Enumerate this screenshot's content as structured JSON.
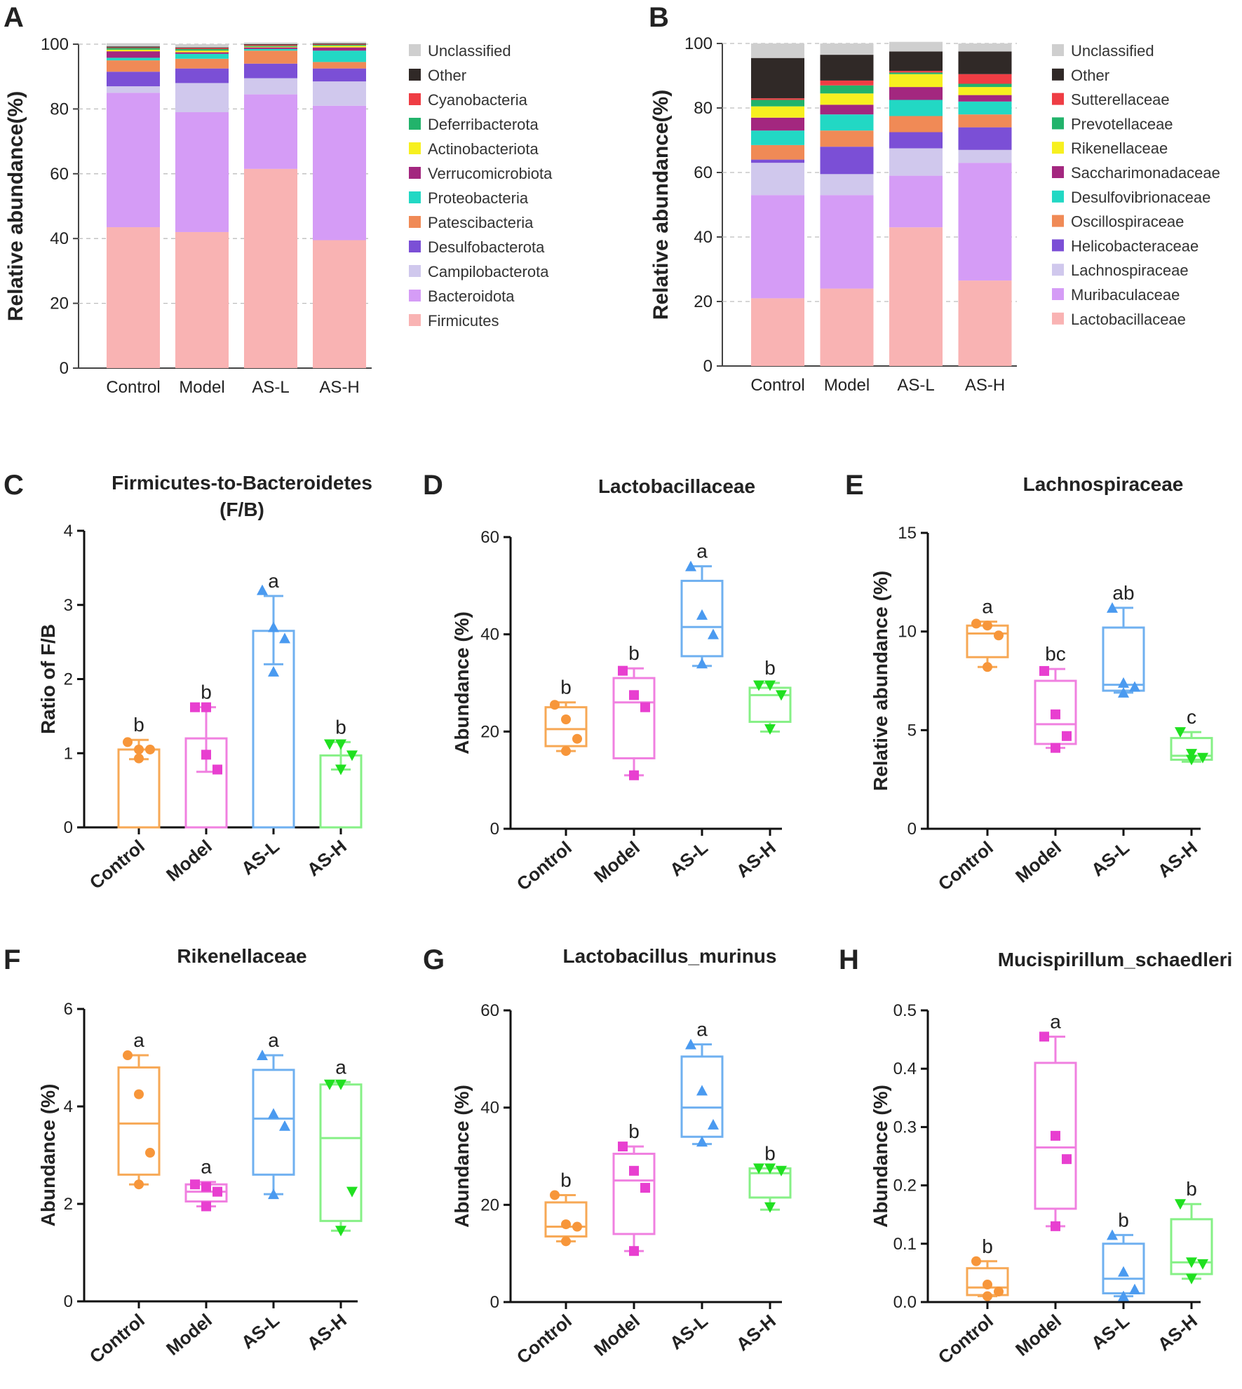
{
  "chart_data": [
    {
      "panel": "A",
      "type": "stacked-bar",
      "ylabel": "Relative abundance(%)",
      "ylim": [
        0,
        100
      ],
      "yticks": [
        "0",
        "20",
        "40",
        "60",
        "80",
        "100"
      ],
      "categories": [
        "Control",
        "Model",
        "AS-L",
        "AS-H"
      ],
      "series": [
        {
          "name": "Firmicutes",
          "color": "#f9b3b3",
          "values": [
            43.5,
            42,
            61.5,
            39.5
          ]
        },
        {
          "name": "Bacteroidota",
          "color": "#d59cf6",
          "values": [
            41.5,
            37,
            23,
            41.5
          ]
        },
        {
          "name": "Campilobacterota",
          "color": "#d0c8ed",
          "values": [
            2,
            9,
            5,
            7.5
          ]
        },
        {
          "name": "Desulfobacterota",
          "color": "#7b4fd6",
          "values": [
            4.5,
            4.5,
            4.5,
            4
          ]
        },
        {
          "name": "Patescibacteria",
          "color": "#f08a56",
          "values": [
            3.5,
            3,
            4,
            2
          ]
        },
        {
          "name": "Proteobacteria",
          "color": "#22d8c4",
          "values": [
            0.8,
            1.5,
            0.5,
            3.5
          ]
        },
        {
          "name": "Verrucomicrobiota",
          "color": "#a3277f",
          "values": [
            2,
            0.5,
            0.5,
            1
          ]
        },
        {
          "name": "Actinobacteriota",
          "color": "#f7f01f",
          "values": [
            0.5,
            0.5,
            0.2,
            0.5
          ]
        },
        {
          "name": "Deferribacterota",
          "color": "#22b36b",
          "values": [
            0.5,
            0.5,
            0.3,
            0.3
          ]
        },
        {
          "name": "Cyanobacteria",
          "color": "#ef3d44",
          "values": [
            0.2,
            0.3,
            0.3,
            0.2
          ]
        },
        {
          "name": "Other",
          "color": "#302927",
          "values": [
            0.3,
            0.2,
            0.2,
            0.2
          ]
        },
        {
          "name": "Unclassified",
          "color": "#cfcfcf",
          "values": [
            1,
            1,
            0.5,
            0.5
          ]
        }
      ]
    },
    {
      "panel": "B",
      "type": "stacked-bar",
      "ylabel": "Relative abundance(%)",
      "ylim": [
        0,
        100
      ],
      "yticks": [
        "0",
        "20",
        "40",
        "60",
        "80",
        "100"
      ],
      "categories": [
        "Control",
        "Model",
        "AS-L",
        "AS-H"
      ],
      "series": [
        {
          "name": "Lactobacillaceae",
          "color": "#f9b3b3",
          "values": [
            21,
            24,
            43,
            26.5
          ]
        },
        {
          "name": "Muribaculaceae",
          "color": "#d59cf6",
          "values": [
            32,
            29,
            16,
            36.5
          ]
        },
        {
          "name": "Lachnospiraceae",
          "color": "#d0c8ed",
          "values": [
            10,
            6.5,
            8.5,
            4
          ]
        },
        {
          "name": "Helicobacteraceae",
          "color": "#7b4fd6",
          "values": [
            1,
            8.5,
            5,
            7
          ]
        },
        {
          "name": "Oscillospiraceae",
          "color": "#f08a56",
          "values": [
            4.5,
            5,
            5,
            4
          ]
        },
        {
          "name": "Desulfovibrionaceae",
          "color": "#22d8c4",
          "values": [
            4.5,
            5,
            5,
            4
          ]
        },
        {
          "name": "Saccharimonadaceae",
          "color": "#a3277f",
          "values": [
            4,
            3,
            4,
            2
          ]
        },
        {
          "name": "Rikenellaceae",
          "color": "#f7f01f",
          "values": [
            3.5,
            3.5,
            4,
            2.5
          ]
        },
        {
          "name": "Prevotellaceae",
          "color": "#22b36b",
          "values": [
            2,
            2.5,
            0.5,
            1
          ]
        },
        {
          "name": "Sutterellaceae",
          "color": "#ef3d44",
          "values": [
            0.5,
            1.5,
            0.5,
            3
          ]
        },
        {
          "name": "Other",
          "color": "#302927",
          "values": [
            12.5,
            8,
            6,
            7
          ]
        },
        {
          "name": "Unclassified",
          "color": "#cfcfcf",
          "values": [
            4.5,
            3.5,
            3,
            2.5
          ]
        }
      ]
    },
    {
      "panel": "C",
      "type": "bar-with-points",
      "title": "Firmicutes-to-Bacteroidetes",
      "subtitle": "(F/B)",
      "ylabel": "Ratio of F/B",
      "ylim": [
        0,
        4
      ],
      "yticks": [
        "0",
        "1",
        "2",
        "3",
        "4"
      ],
      "categories": [
        "Control",
        "Model",
        "AS-L",
        "AS-H"
      ],
      "groups": [
        {
          "mean": 1.05,
          "err_low": 0.92,
          "err_high": 1.18,
          "points": [
            1.15,
            0.93,
            1.05,
            1.05
          ],
          "sig": "b"
        },
        {
          "mean": 1.2,
          "err_low": 0.75,
          "err_high": 1.62,
          "points": [
            1.62,
            1.62,
            0.78,
            0.98
          ],
          "sig": "b"
        },
        {
          "mean": 2.65,
          "err_low": 2.2,
          "err_high": 3.12,
          "points": [
            3.2,
            2.7,
            2.55,
            2.1
          ],
          "sig": "a"
        },
        {
          "mean": 0.97,
          "err_low": 0.78,
          "err_high": 1.15,
          "points": [
            1.12,
            1.12,
            0.97,
            0.78
          ],
          "sig": "b"
        }
      ]
    },
    {
      "panel": "D",
      "type": "box",
      "title": "Lactobacillaceae",
      "ylabel": "Abundance (%)",
      "ylim": [
        0,
        60
      ],
      "yticks": [
        "0",
        "20",
        "40",
        "60"
      ],
      "categories": [
        "Control",
        "Model",
        "AS-L",
        "AS-H"
      ],
      "groups": [
        {
          "min": 16,
          "q1": 17,
          "median": 20.5,
          "q3": 25,
          "max": 26,
          "points": [
            25.5,
            22.5,
            18.5,
            16
          ],
          "sig": "b"
        },
        {
          "min": 11,
          "q1": 14.5,
          "median": 26,
          "q3": 31,
          "max": 33,
          "points": [
            32.5,
            27.5,
            25,
            11
          ],
          "sig": "b"
        },
        {
          "min": 33.5,
          "q1": 35.5,
          "median": 41.5,
          "q3": 51,
          "max": 54,
          "points": [
            54,
            44,
            40,
            34
          ],
          "sig": "a"
        },
        {
          "min": 20,
          "q1": 22,
          "median": 27.5,
          "q3": 29,
          "max": 30,
          "points": [
            29.5,
            29.5,
            27.5,
            20.5
          ],
          "sig": "b"
        }
      ]
    },
    {
      "panel": "E",
      "type": "box",
      "title": "Lachnospiraceae",
      "ylabel": "Relative abundance (%)",
      "ylim": [
        0,
        15
      ],
      "yticks": [
        "0",
        "5",
        "10",
        "15"
      ],
      "categories": [
        "Control",
        "Model",
        "AS-L",
        "AS-H"
      ],
      "groups": [
        {
          "min": 8.2,
          "q1": 8.7,
          "median": 9.9,
          "q3": 10.3,
          "max": 10.5,
          "points": [
            10.4,
            10.3,
            9.8,
            8.2
          ],
          "sig": "a"
        },
        {
          "min": 4.1,
          "q1": 4.3,
          "median": 5.3,
          "q3": 7.5,
          "max": 8.1,
          "points": [
            8.0,
            5.8,
            4.7,
            4.1
          ],
          "sig": "bc"
        },
        {
          "min": 6.9,
          "q1": 7.0,
          "median": 7.3,
          "q3": 10.2,
          "max": 11.2,
          "points": [
            11.2,
            7.4,
            7.2,
            6.9
          ],
          "sig": "ab"
        },
        {
          "min": 3.4,
          "q1": 3.5,
          "median": 3.7,
          "q3": 4.6,
          "max": 4.9,
          "points": [
            4.9,
            3.8,
            3.6,
            3.5
          ],
          "sig": "c"
        }
      ]
    },
    {
      "panel": "F",
      "type": "box",
      "title": "Rikenellaceae",
      "ylabel": "Abundance (%)",
      "ylim": [
        0,
        6
      ],
      "yticks": [
        "0",
        "2",
        "4",
        "6"
      ],
      "categories": [
        "Control",
        "Model",
        "AS-L",
        "AS-H"
      ],
      "groups": [
        {
          "min": 2.4,
          "q1": 2.6,
          "median": 3.65,
          "q3": 4.8,
          "max": 5.05,
          "points": [
            5.05,
            4.25,
            3.05,
            2.4
          ],
          "sig": "a"
        },
        {
          "min": 1.95,
          "q1": 2.05,
          "median": 2.25,
          "q3": 2.4,
          "max": 2.45,
          "points": [
            2.4,
            2.35,
            2.25,
            1.95
          ],
          "sig": "a"
        },
        {
          "min": 2.2,
          "q1": 2.6,
          "median": 3.75,
          "q3": 4.75,
          "max": 5.05,
          "points": [
            5.05,
            3.85,
            3.6,
            2.2
          ],
          "sig": "a"
        },
        {
          "min": 1.45,
          "q1": 1.65,
          "median": 3.35,
          "q3": 4.45,
          "max": 4.5,
          "points": [
            4.45,
            4.45,
            2.25,
            1.45
          ],
          "sig": "a"
        }
      ]
    },
    {
      "panel": "G",
      "type": "box",
      "title": "Lactobacillus_murinus",
      "ylabel": "Abundance (%)",
      "ylim": [
        0,
        60
      ],
      "yticks": [
        "0",
        "20",
        "40",
        "60"
      ],
      "categories": [
        "Control",
        "Model",
        "AS-L",
        "AS-H"
      ],
      "groups": [
        {
          "min": 12.5,
          "q1": 13.5,
          "median": 15.5,
          "q3": 20.5,
          "max": 22,
          "points": [
            22,
            16,
            15.5,
            12.5
          ],
          "sig": "b"
        },
        {
          "min": 10.5,
          "q1": 14,
          "median": 25,
          "q3": 30.5,
          "max": 32,
          "points": [
            32,
            27,
            23.5,
            10.5
          ],
          "sig": "b"
        },
        {
          "min": 32.5,
          "q1": 34,
          "median": 40,
          "q3": 50.5,
          "max": 53,
          "points": [
            53,
            43.5,
            36.5,
            33
          ],
          "sig": "a"
        },
        {
          "min": 19,
          "q1": 21.5,
          "median": 26.5,
          "q3": 27.5,
          "max": 27.5,
          "points": [
            27.5,
            27.5,
            27,
            19.5
          ],
          "sig": "b"
        }
      ]
    },
    {
      "panel": "H",
      "type": "box",
      "title": "Mucispirillum_schaedleri",
      "ylabel": "Abundance (%)",
      "ylim": [
        0,
        0.5
      ],
      "yticks": [
        "0.0",
        "0.1",
        "0.2",
        "0.3",
        "0.4",
        "0.5"
      ],
      "categories": [
        "Control",
        "Model",
        "AS-L",
        "AS-H"
      ],
      "groups": [
        {
          "min": 0.01,
          "q1": 0.012,
          "median": 0.025,
          "q3": 0.058,
          "max": 0.07,
          "points": [
            0.07,
            0.03,
            0.018,
            0.01
          ],
          "sig": "b"
        },
        {
          "min": 0.13,
          "q1": 0.16,
          "median": 0.265,
          "q3": 0.41,
          "max": 0.455,
          "points": [
            0.455,
            0.285,
            0.245,
            0.13
          ],
          "sig": "a"
        },
        {
          "min": 0.01,
          "q1": 0.015,
          "median": 0.04,
          "q3": 0.1,
          "max": 0.115,
          "points": [
            0.115,
            0.052,
            0.022,
            0.01
          ],
          "sig": "b"
        },
        {
          "min": 0.04,
          "q1": 0.048,
          "median": 0.068,
          "q3": 0.142,
          "max": 0.168,
          "points": [
            0.168,
            0.068,
            0.065,
            0.04
          ],
          "sig": "b"
        }
      ]
    }
  ],
  "group_colors": [
    "#f7a855",
    "#f080e0",
    "#6fb0f0",
    "#86f086"
  ],
  "point_colors": [
    "#f7963a",
    "#e83fd0",
    "#4a9af0",
    "#20e020"
  ]
}
